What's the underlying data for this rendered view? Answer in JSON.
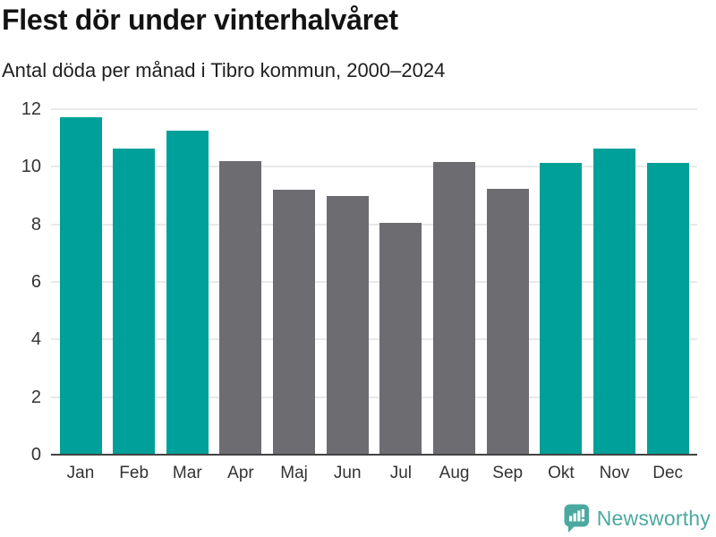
{
  "header": {
    "title": "Flest dör under vinterhalvåret",
    "subtitle": "Antal döda per månad i Tibro kommun, 2000–2024"
  },
  "chart_data": {
    "type": "bar",
    "title": "Flest dör under vinterhalvåret",
    "subtitle": "Antal döda per månad i Tibro kommun, 2000–2024",
    "categories": [
      "Jan",
      "Feb",
      "Mar",
      "Apr",
      "Maj",
      "Jun",
      "Jul",
      "Aug",
      "Sep",
      "Okt",
      "Nov",
      "Dec"
    ],
    "values": [
      11.72,
      10.64,
      11.24,
      10.2,
      9.2,
      9.0,
      8.04,
      10.16,
      9.24,
      10.12,
      10.64,
      10.12
    ],
    "bar_colors": [
      "winter",
      "winter",
      "winter",
      "summer",
      "summer",
      "summer",
      "summer",
      "summer",
      "summer",
      "winter",
      "winter",
      "winter"
    ],
    "palette": {
      "winter": "#00a09a",
      "summer": "#6c6c71"
    },
    "xlabel": "",
    "ylabel": "",
    "ylim": [
      0,
      12
    ],
    "yticks": [
      0,
      2,
      4,
      6,
      8,
      10,
      12
    ],
    "grid": "horizontal",
    "legend": "none",
    "axis_color": "#434343",
    "gridline_color": "#e9e9e9",
    "tick_label_color": "#333333"
  },
  "footer": {
    "brand": "Newsworthy",
    "brand_color": "#4ba9a1"
  }
}
